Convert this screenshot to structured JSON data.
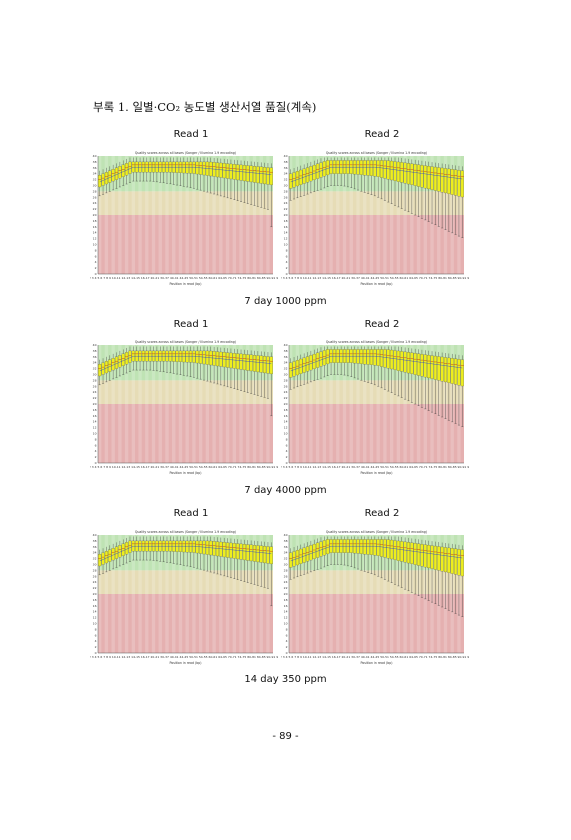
{
  "page_title": "부록 1. 일별·CO₂ 농도별 생산서열 품질(계속)",
  "groups": [
    {
      "caption": "7 day 1000 ppm",
      "read1_label": "Read 1",
      "read2_label": "Read 2"
    },
    {
      "caption": "7 day 4000 ppm",
      "read1_label": "Read 1",
      "read2_label": "Read 2"
    },
    {
      "caption": "14 day 350 ppm",
      "read1_label": "Read 1",
      "read2_label": "Read 2"
    }
  ],
  "chart_text": {
    "title": "Quality scores across all bases (Sanger / Illumina 1.9 encoding)",
    "xlabel": "Position in read (bp)"
  },
  "colors": {
    "good_zone": "#bfe3b4",
    "warn_zone": "#e6dcb6",
    "bad_zone": "#e5b0b0",
    "box_fill": "#eeee1e",
    "whisker": "#333333"
  },
  "page_number": "- 89 -",
  "chart_data": [
    {
      "type": "box",
      "panel": "7 day 1000 ppm – Read 1",
      "xlabel": "Position in read (bp)",
      "ylim": [
        0,
        40
      ]
    },
    {
      "type": "box",
      "panel": "7 day 1000 ppm – Read 2",
      "xlabel": "Position in read (bp)",
      "ylim": [
        0,
        40
      ]
    },
    {
      "type": "box",
      "panel": "7 day 4000 ppm – Read 1",
      "xlabel": "Position in read (bp)",
      "ylim": [
        0,
        40
      ]
    },
    {
      "type": "box",
      "panel": "7 day 4000 ppm – Read 2",
      "xlabel": "Position in read (bp)",
      "ylim": [
        0,
        40
      ]
    },
    {
      "type": "box",
      "panel": "14 day 350 ppm – Read 1",
      "xlabel": "Position in read (bp)",
      "ylim": [
        0,
        40
      ]
    },
    {
      "type": "box",
      "panel": "14 day 350 ppm – Read 2",
      "xlabel": "Position in read (bp)",
      "ylim": [
        0,
        40
      ]
    }
  ]
}
